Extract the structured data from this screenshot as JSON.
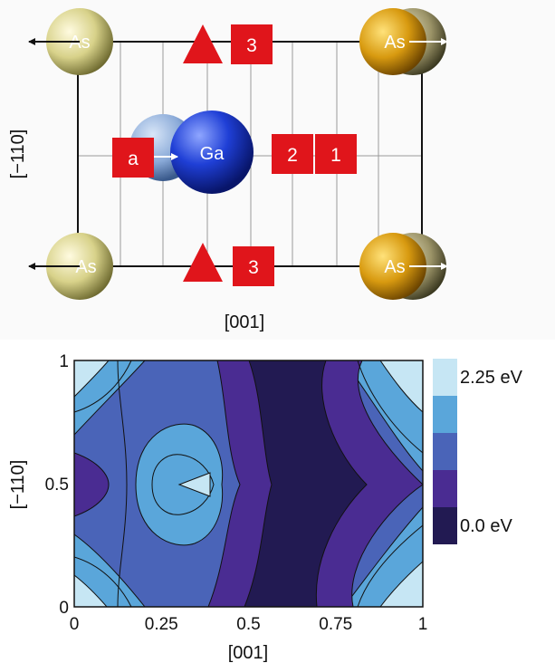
{
  "structure": {
    "atoms": [
      {
        "label": "As",
        "element": "As",
        "color": "#d8d28a"
      },
      {
        "label": "As",
        "element": "As",
        "color": "#d89a10"
      },
      {
        "label": "As",
        "element": "As",
        "color": "#d8d28a"
      },
      {
        "label": "As",
        "element": "As",
        "color": "#d89a10"
      },
      {
        "label": "Ga",
        "element": "Ga",
        "color": "#1f3fd6"
      }
    ],
    "markers": {
      "site_3_label": "3",
      "site_2_label": "2",
      "site_1_label": "1",
      "site_a_label": "a",
      "color": "#e0151b"
    },
    "x_axis_label": "[001]",
    "y_axis_label": "[−110]"
  },
  "contour": {
    "x_axis_label": "[001]",
    "y_axis_label": "[−110]",
    "x_ticks": [
      "0",
      "0.25",
      "0.5",
      "0.75",
      "1"
    ],
    "y_ticks": [
      "0",
      "0.5",
      "1"
    ],
    "colorbar": {
      "labels": [
        "2.25 eV",
        "0.0 eV"
      ],
      "colors": [
        "#c6e6f4",
        "#5aa6da",
        "#4a64b8",
        "#4a2c92",
        "#221a52"
      ]
    }
  },
  "chart_data": {
    "type": "heatmap",
    "xlabel": "[001]",
    "ylabel": "[−110]",
    "xlim": [
      0,
      1
    ],
    "ylim": [
      0,
      1
    ],
    "x_ticks": [
      0,
      0.25,
      0.5,
      0.75,
      1
    ],
    "y_ticks": [
      0,
      0.5,
      1
    ],
    "colorbar_range_eV": [
      0.0,
      2.25
    ],
    "colorbar_labels": [
      "2.25 eV",
      "0.0 eV"
    ],
    "levels": 5,
    "features": [
      {
        "kind": "maximum",
        "x": 1.0,
        "y": 1.0
      },
      {
        "kind": "maximum",
        "x": 1.0,
        "y": 0.0
      },
      {
        "kind": "maximum",
        "x": 0.0,
        "y": 1.0
      },
      {
        "kind": "maximum",
        "x": 0.0,
        "y": 0.0
      },
      {
        "kind": "local-maximum",
        "x": 0.3,
        "y": 0.5
      },
      {
        "kind": "minimum-trough",
        "x": 0.5,
        "y": 0.5
      }
    ]
  }
}
